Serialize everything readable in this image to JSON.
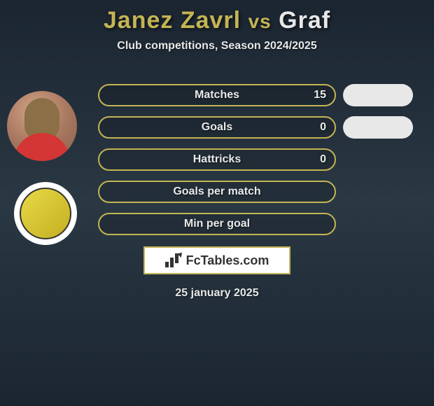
{
  "title": {
    "player1": "Janez Zavrl",
    "vs": "vs",
    "player2": "Graf"
  },
  "subtitle": "Club competitions, Season 2024/2025",
  "stats": [
    {
      "label": "Matches",
      "value": "15",
      "showOval": true
    },
    {
      "label": "Goals",
      "value": "0",
      "showOval": true
    },
    {
      "label": "Hattricks",
      "value": "0",
      "showOval": false
    },
    {
      "label": "Goals per match",
      "value": "",
      "showOval": false
    },
    {
      "label": "Min per goal",
      "value": "",
      "showOval": false
    }
  ],
  "brand": {
    "text": "FcTables.com"
  },
  "date": "25 january 2025",
  "colors": {
    "accent": "#c4b454",
    "text_light": "#e8e8e8",
    "bg_dark_top": "#1a2530",
    "bg_dark_mid": "#2a3844"
  }
}
